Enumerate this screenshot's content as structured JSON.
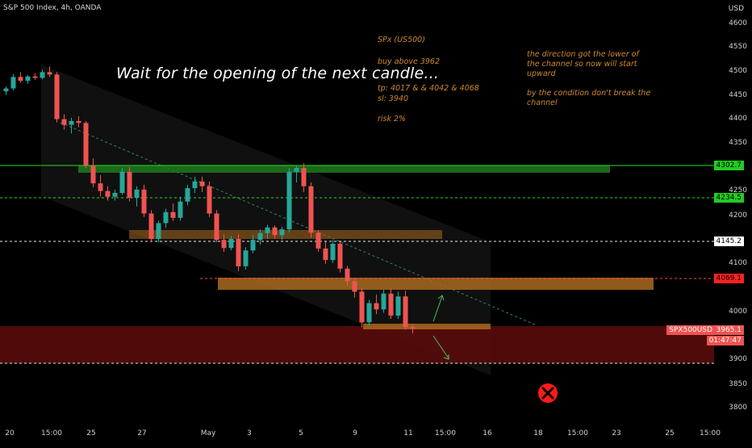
{
  "header": {
    "symbol_line": "S&P 500 Index, 4h, OANDA",
    "currency": "USD"
  },
  "headline": "Wait for the opening of the next candle...",
  "trade_note": {
    "symbol": "SPx (US500)",
    "entry": "buy above 3962",
    "tp": "tp: 4017  &  & 4042 & 4068",
    "sl": "sl: 3940",
    "risk": "risk 2%"
  },
  "comment": {
    "line1": "the direction got the lower of",
    "line2": "the channel so now will start",
    "line3": "upward",
    "line4": "by the condition don't break the",
    "line5": "channel"
  },
  "price_tags": {
    "green_top": "4302.7",
    "green_mid": "4234.5",
    "white": "4145.2",
    "red": "4069.1",
    "symbol": "SPX500USD",
    "last": "3965.1",
    "countdown": "01:47:47"
  },
  "colors": {
    "bull": "#26a69a",
    "bear": "#ef5350",
    "orange_zone": "#a86a1e",
    "green_zone": "#1f7a1f",
    "red_zone": "#5a0b0b"
  },
  "chart_data": {
    "type": "candlestick",
    "title": "S&P 500 Index, 4h, OANDA",
    "y_unit": "USD",
    "yrange": [
      3775,
      4630
    ],
    "y_ticks": [
      4600,
      4550,
      4500,
      4450,
      4400,
      4350,
      4300,
      4250,
      4200,
      4150,
      4100,
      4050,
      4000,
      3950,
      3900,
      3850,
      3800
    ],
    "x_ticks": [
      "20",
      "15:00",
      "25",
      "27",
      "May",
      "3",
      "5",
      "9",
      "11",
      "15:00",
      "16",
      "18",
      "15:00",
      "23",
      "25",
      "15:00"
    ],
    "levels": [
      4302.7,
      4234.5,
      4145.2,
      4069.1,
      3965.1,
      3892
    ],
    "zones": {
      "resistance_green": [
        4288,
        4302.7
      ],
      "orange_upper": [
        4133,
        4145
      ],
      "orange_mid": [
        4055,
        4069
      ],
      "orange_low": [
        3960,
        3967
      ],
      "demand_red": [
        3890,
        3965
      ]
    },
    "candles": [
      [
        4460,
        4470,
        4452,
        4466
      ],
      [
        4466,
        4496,
        4462,
        4490
      ],
      [
        4490,
        4500,
        4478,
        4482
      ],
      [
        4482,
        4494,
        4476,
        4491
      ],
      [
        4491,
        4498,
        4484,
        4488
      ],
      [
        4488,
        4506,
        4485,
        4500
      ],
      [
        4500,
        4512,
        4490,
        4495
      ],
      [
        4495,
        4500,
        4395,
        4402
      ],
      [
        4402,
        4412,
        4380,
        4390
      ],
      [
        4390,
        4405,
        4372,
        4398
      ],
      [
        4398,
        4408,
        4385,
        4394
      ],
      [
        4394,
        4398,
        4300,
        4305
      ],
      [
        4305,
        4320,
        4260,
        4268
      ],
      [
        4268,
        4285,
        4240,
        4252
      ],
      [
        4252,
        4262,
        4232,
        4240
      ],
      [
        4240,
        4255,
        4232,
        4248
      ],
      [
        4248,
        4300,
        4244,
        4292
      ],
      [
        4292,
        4302,
        4230,
        4238
      ],
      [
        4238,
        4262,
        4220,
        4255
      ],
      [
        4255,
        4265,
        4198,
        4205
      ],
      [
        4205,
        4212,
        4145,
        4152
      ],
      [
        4152,
        4190,
        4145,
        4185
      ],
      [
        4185,
        4215,
        4175,
        4208
      ],
      [
        4208,
        4226,
        4190,
        4196
      ],
      [
        4196,
        4240,
        4190,
        4230
      ],
      [
        4230,
        4265,
        4222,
        4258
      ],
      [
        4258,
        4282,
        4248,
        4272
      ],
      [
        4272,
        4282,
        4250,
        4262
      ],
      [
        4262,
        4272,
        4198,
        4205
      ],
      [
        4205,
        4212,
        4145,
        4150
      ],
      [
        4150,
        4162,
        4125,
        4133
      ],
      [
        4133,
        4158,
        4128,
        4152
      ],
      [
        4152,
        4162,
        4085,
        4095
      ],
      [
        4095,
        4135,
        4088,
        4128
      ],
      [
        4128,
        4160,
        4122,
        4150
      ],
      [
        4150,
        4172,
        4140,
        4164
      ],
      [
        4164,
        4182,
        4152,
        4176
      ],
      [
        4176,
        4180,
        4152,
        4160
      ],
      [
        4160,
        4178,
        4150,
        4172
      ],
      [
        4172,
        4300,
        4166,
        4292
      ],
      [
        4292,
        4305,
        4270,
        4300
      ],
      [
        4300,
        4310,
        4250,
        4262
      ],
      [
        4262,
        4270,
        4155,
        4165
      ],
      [
        4165,
        4170,
        4125,
        4132
      ],
      [
        4132,
        4146,
        4100,
        4108
      ],
      [
        4108,
        4150,
        4102,
        4142
      ],
      [
        4142,
        4146,
        4082,
        4090
      ],
      [
        4090,
        4096,
        4055,
        4064
      ],
      [
        4064,
        4070,
        4030,
        4042
      ],
      [
        4042,
        4050,
        3968,
        3978
      ],
      [
        3978,
        4025,
        3972,
        4018
      ],
      [
        4018,
        4036,
        3995,
        4005
      ],
      [
        4005,
        4046,
        3998,
        4038
      ],
      [
        4038,
        4050,
        3985,
        3992
      ],
      [
        3992,
        4042,
        3985,
        4032
      ],
      [
        4032,
        4044,
        3963,
        3968
      ],
      [
        3968,
        3975,
        3955,
        3965
      ]
    ]
  }
}
